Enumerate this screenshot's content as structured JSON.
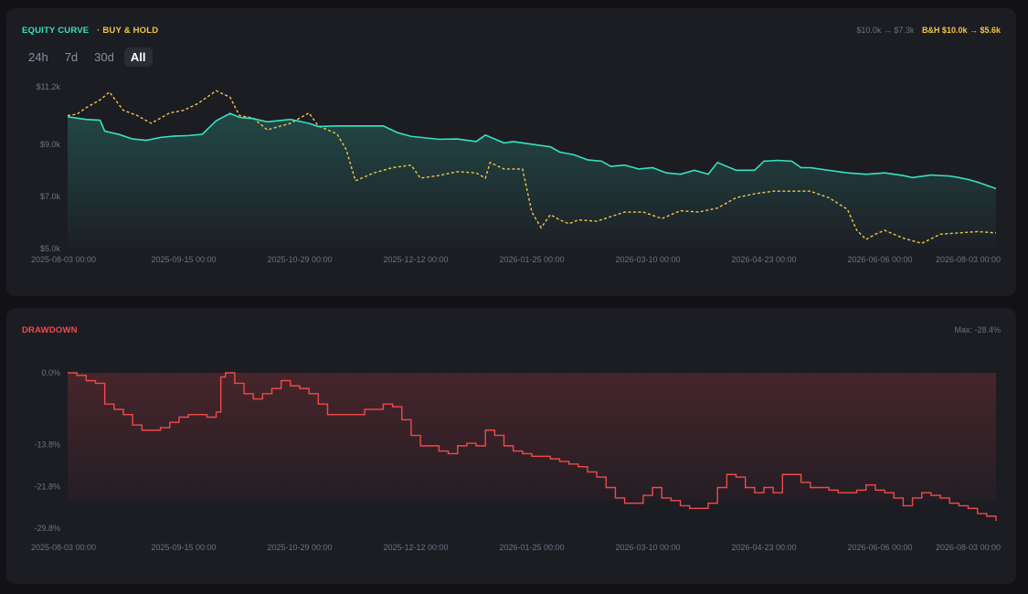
{
  "equity_panel": {
    "legend": {
      "equity": "EQUITY CURVE",
      "buy_hold": "· BUY & HOLD"
    },
    "summary": {
      "strategy": "$10.0k → $7.3k",
      "buy_hold": "B&H $10.0k → $5.6k"
    },
    "range_tabs": [
      {
        "label": "24h",
        "active": false
      },
      {
        "label": "7d",
        "active": false
      },
      {
        "label": "30d",
        "active": false
      },
      {
        "label": "All",
        "active": true
      }
    ]
  },
  "drawdown_panel": {
    "legend": "DRAWDOWN",
    "summary": "Max: -28.4%"
  },
  "colors": {
    "equity": "#37e2c1",
    "buy_hold": "#f2c744",
    "drawdown": "#ef4a4a",
    "background": "#111116",
    "card": "#1c1c23"
  },
  "chart_data": [
    {
      "type": "line",
      "x_ticks": [
        "2025-08-03 00:00",
        "2025-09-15 00:00",
        "2025-10-29 00:00",
        "2025-12-12 00:00",
        "2026-01-25 00:00",
        "2026-03-10 00:00",
        "2026-04-23 00:00",
        "2026-06-06 00:00",
        "2026-08-03 00:00"
      ],
      "y_ticks": [
        "$11.2k",
        "$9.0k",
        "$7.0k",
        "$5.0k"
      ],
      "ylim": [
        5000,
        11200
      ],
      "grid": false,
      "series": [
        {
          "name": "EQUITY CURVE",
          "x": [
            0,
            0.02,
            0.035,
            0.04,
            0.055,
            0.07,
            0.085,
            0.1,
            0.115,
            0.13,
            0.145,
            0.16,
            0.175,
            0.185,
            0.2,
            0.215,
            0.24,
            0.26,
            0.27,
            0.29,
            0.3,
            0.32,
            0.34,
            0.355,
            0.37,
            0.4,
            0.42,
            0.44,
            0.45,
            0.47,
            0.48,
            0.5,
            0.51,
            0.52,
            0.53,
            0.545,
            0.56,
            0.575,
            0.585,
            0.6,
            0.615,
            0.63,
            0.645,
            0.66,
            0.675,
            0.69,
            0.7,
            0.72,
            0.73,
            0.74,
            0.75,
            0.765,
            0.78,
            0.79,
            0.8,
            0.82,
            0.84,
            0.86,
            0.88,
            0.9,
            0.91,
            0.93,
            0.95,
            0.96,
            0.97,
            0.98,
            1.0
          ],
          "y": [
            10050,
            9950,
            9920,
            9500,
            9380,
            9200,
            9150,
            9260,
            9310,
            9330,
            9380,
            9900,
            10180,
            10030,
            9980,
            9860,
            9950,
            9800,
            9680,
            9700,
            9700,
            9700,
            9700,
            9450,
            9300,
            9190,
            9200,
            9100,
            9350,
            9050,
            9100,
            9000,
            8950,
            8900,
            8700,
            8600,
            8400,
            8350,
            8150,
            8200,
            8050,
            8100,
            7900,
            7850,
            8000,
            7850,
            8300,
            8000,
            8000,
            8000,
            8350,
            8380,
            8350,
            8100,
            8100,
            8000,
            7900,
            7850,
            7900,
            7800,
            7720,
            7820,
            7780,
            7720,
            7650,
            7550,
            7300
          ]
        },
        {
          "name": "BUY & HOLD",
          "x": [
            0,
            0.01,
            0.02,
            0.035,
            0.045,
            0.06,
            0.075,
            0.09,
            0.11,
            0.125,
            0.14,
            0.16,
            0.175,
            0.185,
            0.2,
            0.215,
            0.24,
            0.26,
            0.27,
            0.29,
            0.3,
            0.31,
            0.33,
            0.35,
            0.37,
            0.38,
            0.4,
            0.42,
            0.44,
            0.45,
            0.455,
            0.47,
            0.49,
            0.5,
            0.51,
            0.52,
            0.53,
            0.54,
            0.55,
            0.57,
            0.6,
            0.62,
            0.64,
            0.66,
            0.68,
            0.7,
            0.72,
            0.74,
            0.76,
            0.78,
            0.8,
            0.82,
            0.84,
            0.85,
            0.86,
            0.87,
            0.88,
            0.9,
            0.92,
            0.94,
            0.96,
            0.98,
            1.0
          ],
          "y": [
            10100,
            10150,
            10400,
            10700,
            11000,
            10300,
            10100,
            9800,
            10200,
            10300,
            10550,
            11050,
            10800,
            10100,
            10000,
            9550,
            9800,
            10200,
            9700,
            9400,
            8800,
            7600,
            7900,
            8100,
            8200,
            7700,
            7800,
            7950,
            7900,
            7700,
            8300,
            8050,
            8050,
            6400,
            5800,
            6300,
            6100,
            5950,
            6100,
            6050,
            6400,
            6400,
            6150,
            6450,
            6400,
            6550,
            6950,
            7100,
            7200,
            7200,
            7200,
            6950,
            6500,
            5700,
            5350,
            5550,
            5700,
            5400,
            5200,
            5550,
            5600,
            5650,
            5600
          ]
        }
      ]
    },
    {
      "type": "area",
      "x_ticks": [
        "2025-08-03 00:00",
        "2025-09-15 00:00",
        "2025-10-29 00:00",
        "2025-12-12 00:00",
        "2026-01-25 00:00",
        "2026-03-10 00:00",
        "2026-04-23 00:00",
        "2026-06-06 00:00",
        "2026-08-03 00:00"
      ],
      "y_ticks": [
        "0.0%",
        "-13.8%",
        "-21.8%",
        "-29.8%"
      ],
      "ylim": [
        -29.8,
        0
      ],
      "grid": false,
      "series": [
        {
          "name": "DRAWDOWN",
          "x": [
            0,
            0.01,
            0.02,
            0.03,
            0.04,
            0.05,
            0.06,
            0.07,
            0.08,
            0.09,
            0.1,
            0.11,
            0.12,
            0.13,
            0.14,
            0.15,
            0.16,
            0.165,
            0.17,
            0.18,
            0.19,
            0.2,
            0.21,
            0.22,
            0.23,
            0.24,
            0.25,
            0.26,
            0.27,
            0.28,
            0.29,
            0.3,
            0.31,
            0.32,
            0.33,
            0.34,
            0.35,
            0.36,
            0.37,
            0.38,
            0.39,
            0.4,
            0.41,
            0.42,
            0.43,
            0.44,
            0.45,
            0.46,
            0.47,
            0.48,
            0.49,
            0.5,
            0.51,
            0.52,
            0.53,
            0.54,
            0.55,
            0.56,
            0.57,
            0.58,
            0.59,
            0.6,
            0.61,
            0.62,
            0.63,
            0.64,
            0.65,
            0.66,
            0.67,
            0.68,
            0.69,
            0.7,
            0.71,
            0.72,
            0.73,
            0.74,
            0.75,
            0.76,
            0.77,
            0.78,
            0.79,
            0.8,
            0.81,
            0.82,
            0.83,
            0.84,
            0.85,
            0.86,
            0.87,
            0.88,
            0.89,
            0.9,
            0.91,
            0.92,
            0.93,
            0.94,
            0.95,
            0.96,
            0.97,
            0.98,
            0.99,
            1.0
          ],
          "y": [
            0,
            -0.5,
            -1.5,
            -2,
            -6,
            -7,
            -8,
            -10,
            -11,
            -11,
            -10.5,
            -9.5,
            -8.5,
            -8,
            -8,
            -8.5,
            -7.5,
            -0.8,
            0,
            -2,
            -4,
            -5,
            -4,
            -3,
            -1.5,
            -2.5,
            -3,
            -4,
            -6,
            -8,
            -8,
            -8,
            -8,
            -7,
            -7,
            -6,
            -6.5,
            -9,
            -12,
            -14,
            -14,
            -15,
            -15.5,
            -14,
            -13.5,
            -14,
            -11,
            -12,
            -14,
            -15,
            -15.5,
            -16,
            -16,
            -16.5,
            -17,
            -17.5,
            -18,
            -19,
            -20,
            -22,
            -24,
            -25,
            -25,
            -23.5,
            -22,
            -24,
            -24.5,
            -25.5,
            -26,
            -26,
            -25,
            -22,
            -19.5,
            -20,
            -22,
            -23,
            -22,
            -23,
            -19.5,
            -19.5,
            -21,
            -22,
            -22,
            -22.5,
            -23,
            -23,
            -22.5,
            -21.5,
            -22.5,
            -23,
            -24,
            -25.5,
            -24,
            -23,
            -23.5,
            -24,
            -25,
            -25.5,
            -26,
            -27,
            -27.5,
            -28.4
          ]
        }
      ]
    }
  ]
}
